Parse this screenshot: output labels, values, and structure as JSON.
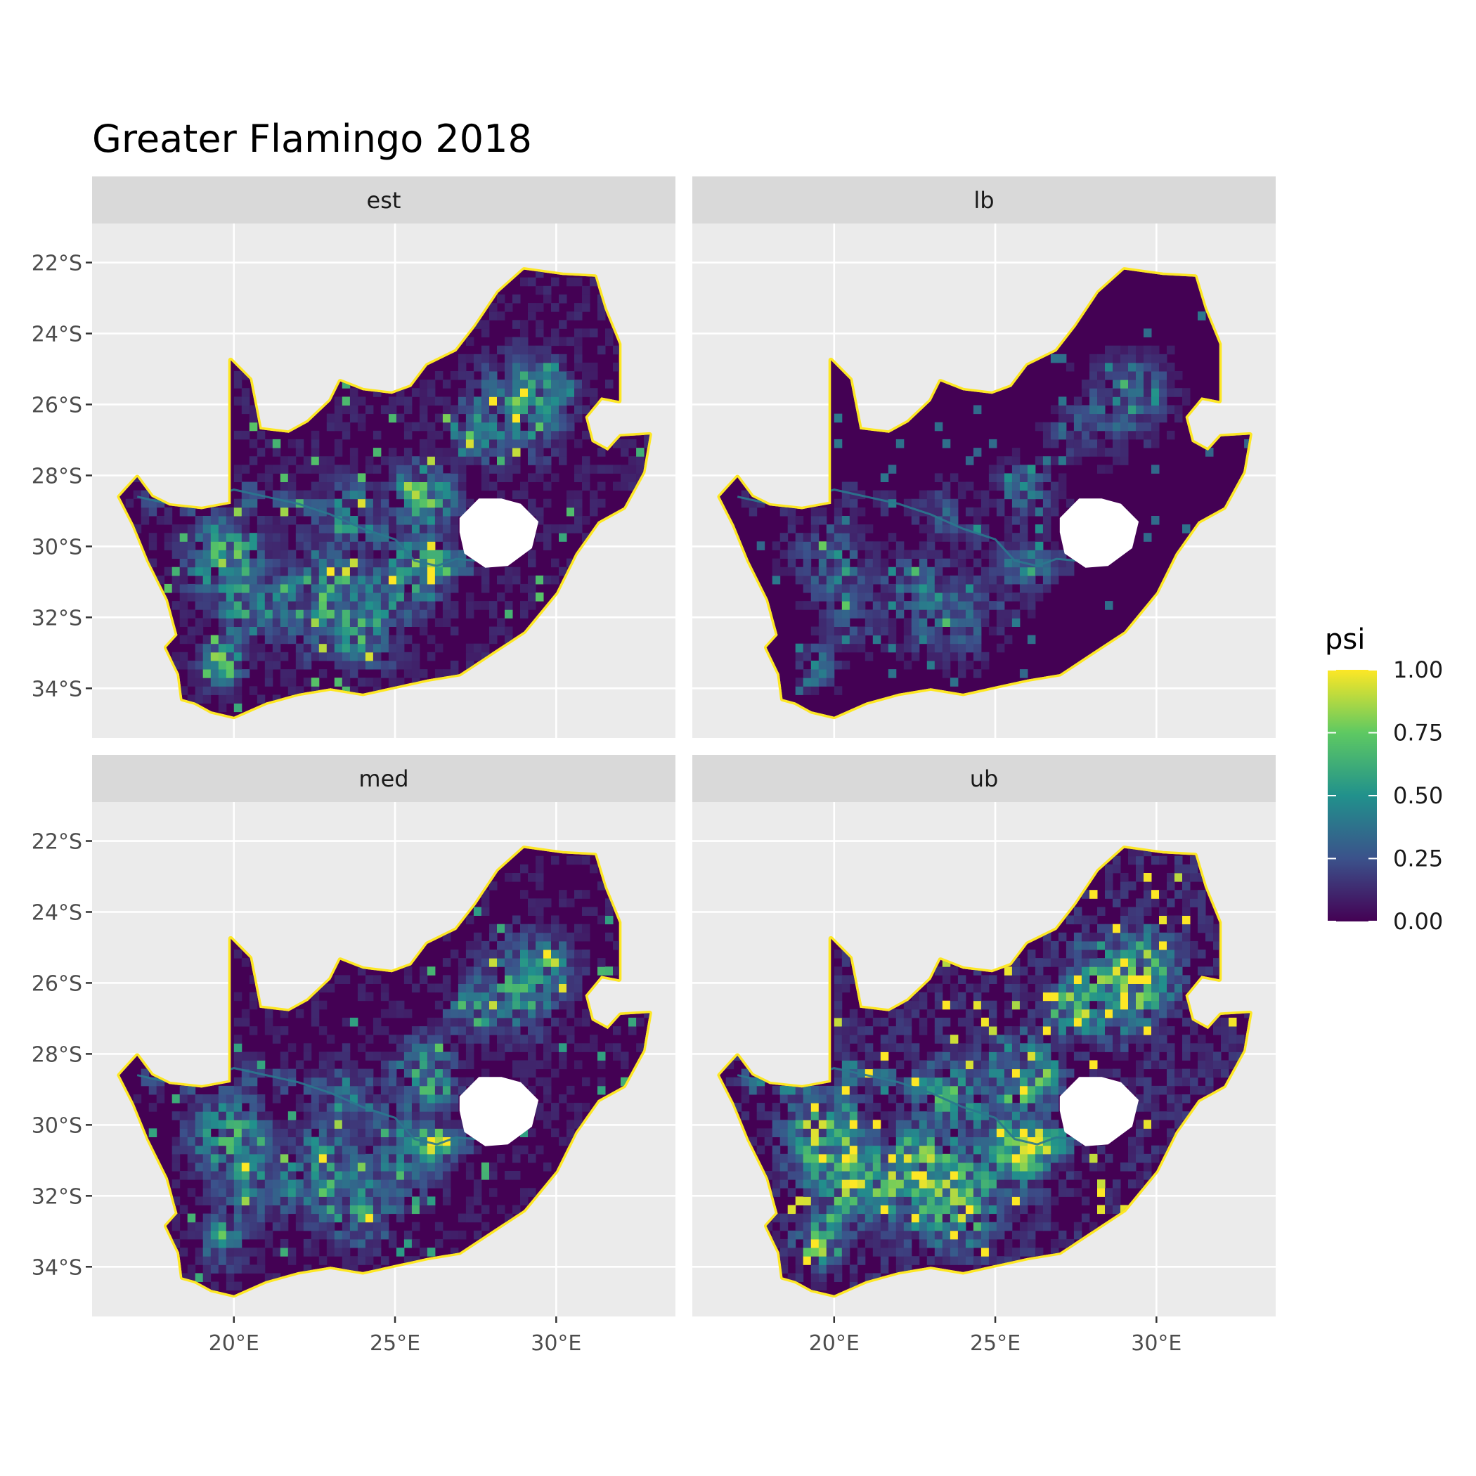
{
  "title": "Greater Flamingo 2018",
  "panels": [
    {
      "label": "est",
      "intensity": 0.55,
      "seed": 11
    },
    {
      "label": "lb",
      "intensity": 0.3,
      "seed": 23
    },
    {
      "label": "med",
      "intensity": 0.5,
      "seed": 37
    },
    {
      "label": "ub",
      "intensity": 0.8,
      "seed": 53
    }
  ],
  "x_ticks": [
    "20°E",
    "25°E",
    "30°E"
  ],
  "x_tick_values": [
    20,
    25,
    30
  ],
  "y_ticks": [
    "22°S",
    "24°S",
    "26°S",
    "28°S",
    "30°S",
    "32°S",
    "34°S"
  ],
  "y_tick_values": [
    -22,
    -24,
    -26,
    -28,
    -30,
    -32,
    -34
  ],
  "x_range": [
    15.6,
    33.7
  ],
  "y_range": [
    -35.4,
    -20.9
  ],
  "legend": {
    "title": "psi",
    "labels": [
      "1.00",
      "0.75",
      "0.50",
      "0.25",
      "0.00"
    ],
    "values": [
      1.0,
      0.75,
      0.5,
      0.25,
      0.0
    ],
    "colors": [
      "#440154",
      "#3b528b",
      "#21918c",
      "#5ec962",
      "#fde725"
    ]
  },
  "colors": {
    "panel_bg": "#ebebeb",
    "strip_bg": "#d9d9d9",
    "grid": "#ffffff",
    "low": "#440154",
    "high": "#fde725"
  }
}
